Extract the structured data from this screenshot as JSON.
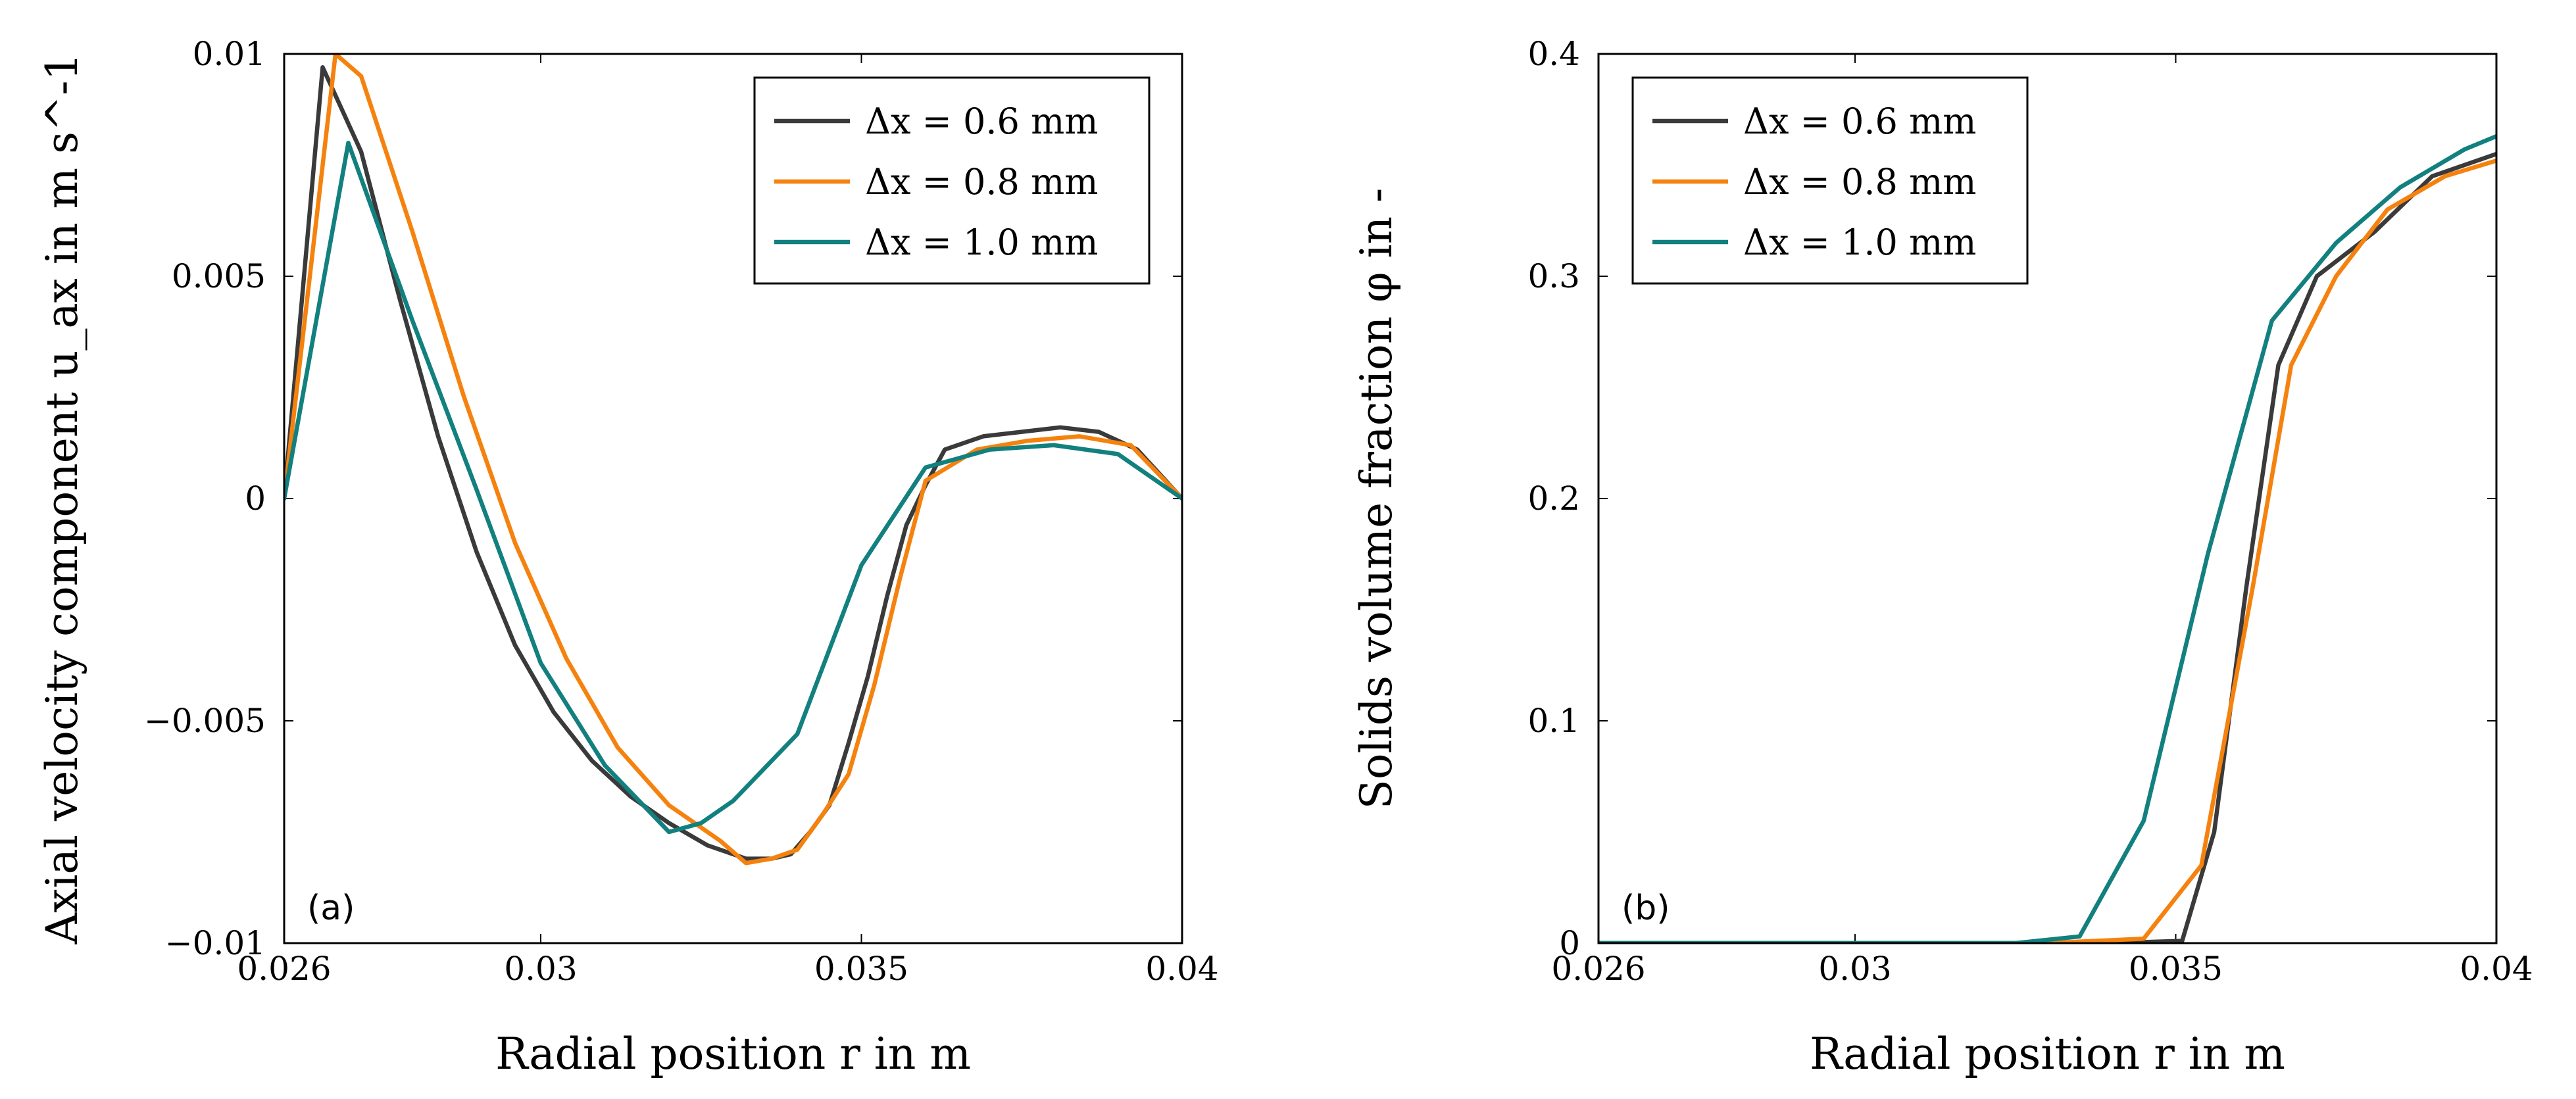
{
  "colors": {
    "dx06": "#3a3a3a",
    "dx08": "#f5820e",
    "dx10": "#12807f"
  },
  "chart_data": [
    {
      "type": "line",
      "panel_label": "(a)",
      "xlabel": "Radial position r in m",
      "ylabel": "Axial velocity component u_ax in m s^-1",
      "xlim": [
        0.026,
        0.04
      ],
      "ylim": [
        -0.01,
        0.01
      ],
      "xticks": [
        0.026,
        0.03,
        0.035,
        0.04
      ],
      "xtick_labels": [
        "0.026",
        "0.03",
        "0.035",
        "0.04"
      ],
      "yticks": [
        -0.01,
        -0.005,
        0,
        0.005,
        0.01
      ],
      "ytick_labels": [
        "−0.01",
        "−0.005",
        "0",
        "0.005",
        "0.01"
      ],
      "legend_position": "top-right",
      "series": [
        {
          "name": "Δx = 0.6 mm",
          "label": "Δx = 0.6 mm",
          "color_key": "dx06",
          "x": [
            0.026,
            0.0266,
            0.0272,
            0.0278,
            0.0284,
            0.029,
            0.0296,
            0.0302,
            0.0308,
            0.0314,
            0.032,
            0.0326,
            0.0332,
            0.0336,
            0.0339,
            0.0342,
            0.0345,
            0.0348,
            0.0351,
            0.0354,
            0.0357,
            0.036,
            0.0363,
            0.0369,
            0.0375,
            0.0381,
            0.0387,
            0.0393,
            0.04
          ],
          "y": [
            0,
            0.0097,
            0.0078,
            0.0045,
            0.0014,
            -0.0012,
            -0.0033,
            -0.0048,
            -0.0059,
            -0.0067,
            -0.0073,
            -0.0078,
            -0.0081,
            -0.0081,
            -0.008,
            -0.0075,
            -0.0069,
            -0.0055,
            -0.004,
            -0.0022,
            -0.0006,
            0.0003,
            0.0011,
            0.0014,
            0.0015,
            0.0016,
            0.0015,
            0.0011,
            0
          ]
        },
        {
          "name": "Δx = 0.8 mm",
          "label": "Δx = 0.8 mm",
          "color_key": "dx08",
          "x": [
            0.026,
            0.0268,
            0.0272,
            0.028,
            0.0288,
            0.0296,
            0.0304,
            0.0312,
            0.032,
            0.0328,
            0.0332,
            0.0336,
            0.034,
            0.0344,
            0.0348,
            0.0352,
            0.0356,
            0.036,
            0.0368,
            0.0376,
            0.0384,
            0.0392,
            0.04
          ],
          "y": [
            0,
            0.01,
            0.0095,
            0.006,
            0.0023,
            -0.001,
            -0.0036,
            -0.0056,
            -0.0069,
            -0.0077,
            -0.0082,
            -0.0081,
            -0.0079,
            -0.0071,
            -0.0062,
            -0.0042,
            -0.0018,
            0.0004,
            0.0011,
            0.0013,
            0.0014,
            0.0012,
            0
          ]
        },
        {
          "name": "Δx = 1.0 mm",
          "label": "Δx = 1.0 mm",
          "color_key": "dx10",
          "x": [
            0.026,
            0.027,
            0.028,
            0.029,
            0.03,
            0.031,
            0.032,
            0.0325,
            0.033,
            0.034,
            0.035,
            0.036,
            0.037,
            0.038,
            0.039,
            0.04
          ],
          "y": [
            0,
            0.008,
            0.004,
            0.0002,
            -0.0037,
            -0.006,
            -0.0075,
            -0.0073,
            -0.0068,
            -0.0053,
            -0.0015,
            0.0007,
            0.0011,
            0.0012,
            0.001,
            0
          ]
        }
      ]
    },
    {
      "type": "line",
      "panel_label": "(b)",
      "xlabel": "Radial position r in m",
      "ylabel": "Solids volume fraction φ in -",
      "xlim": [
        0.026,
        0.04
      ],
      "ylim": [
        0,
        0.4
      ],
      "xticks": [
        0.026,
        0.03,
        0.035,
        0.04
      ],
      "xtick_labels": [
        "0.026",
        "0.03",
        "0.035",
        "0.04"
      ],
      "yticks": [
        0,
        0.1,
        0.2,
        0.3,
        0.4
      ],
      "ytick_labels": [
        "0",
        "0.1",
        "0.2",
        "0.3",
        "0.4"
      ],
      "legend_position": "top-left",
      "series": [
        {
          "name": "Δx = 0.6 mm",
          "label": "Δx = 0.6 mm",
          "color_key": "dx06",
          "x": [
            0.026,
            0.033,
            0.034,
            0.0351,
            0.0356,
            0.0361,
            0.0366,
            0.0372,
            0.0381,
            0.039,
            0.04
          ],
          "y": [
            0,
            0,
            0,
            0.001,
            0.05,
            0.16,
            0.26,
            0.3,
            0.32,
            0.345,
            0.355
          ]
        },
        {
          "name": "Δx = 0.8 mm",
          "label": "Δx = 0.8 mm",
          "color_key": "dx08",
          "x": [
            0.026,
            0.033,
            0.0345,
            0.0354,
            0.0362,
            0.0368,
            0.0375,
            0.0383,
            0.0392,
            0.04
          ],
          "y": [
            0,
            0,
            0.002,
            0.035,
            0.16,
            0.26,
            0.3,
            0.33,
            0.345,
            0.352
          ]
        },
        {
          "name": "Δx = 1.0 mm",
          "label": "Δx = 1.0 mm",
          "color_key": "dx10",
          "x": [
            0.026,
            0.0325,
            0.0335,
            0.0345,
            0.0355,
            0.0365,
            0.0375,
            0.0385,
            0.0395,
            0.04
          ],
          "y": [
            0,
            0,
            0.003,
            0.055,
            0.175,
            0.28,
            0.315,
            0.34,
            0.357,
            0.363
          ]
        }
      ]
    }
  ]
}
